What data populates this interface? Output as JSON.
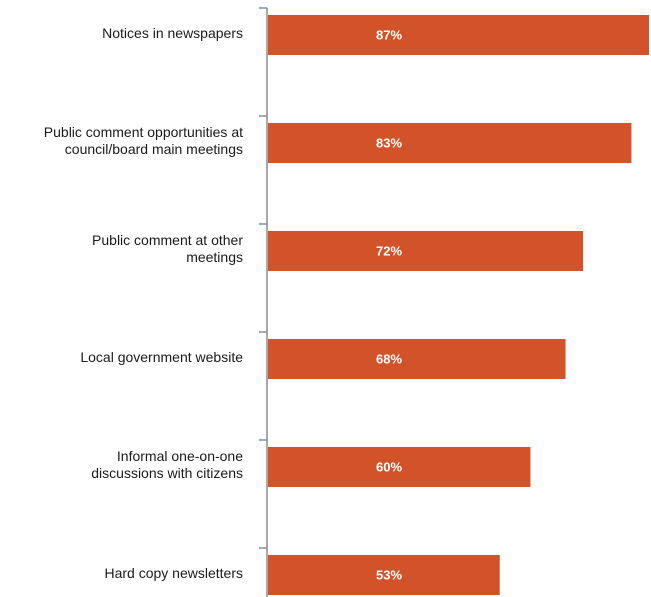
{
  "chart_data": {
    "type": "bar",
    "orientation": "horizontal",
    "categories": [
      "Notices in newspapers",
      "Public comment opportunities at council/board main meetings",
      "Public comment at other meetings",
      "Local government website",
      "Informal one-on-one discussions with citizens",
      "Hard copy newsletters"
    ],
    "category_lines": [
      [
        "Notices in newspapers"
      ],
      [
        "Public comment opportunities at",
        "council/board main meetings"
      ],
      [
        "Public comment at other",
        "meetings"
      ],
      [
        "Local government website"
      ],
      [
        "Informal one-on-one",
        "discussions with citizens"
      ],
      [
        "Hard copy newsletters"
      ]
    ],
    "values": [
      87,
      83,
      72,
      68,
      60,
      53
    ],
    "data_labels": [
      "87%",
      "83%",
      "72%",
      "68%",
      "60%",
      "53%"
    ],
    "xlim": [
      0,
      87
    ],
    "bar_color": "#d2532a",
    "grid": false,
    "legend": "none",
    "title": "",
    "xlabel": "",
    "ylabel": ""
  }
}
